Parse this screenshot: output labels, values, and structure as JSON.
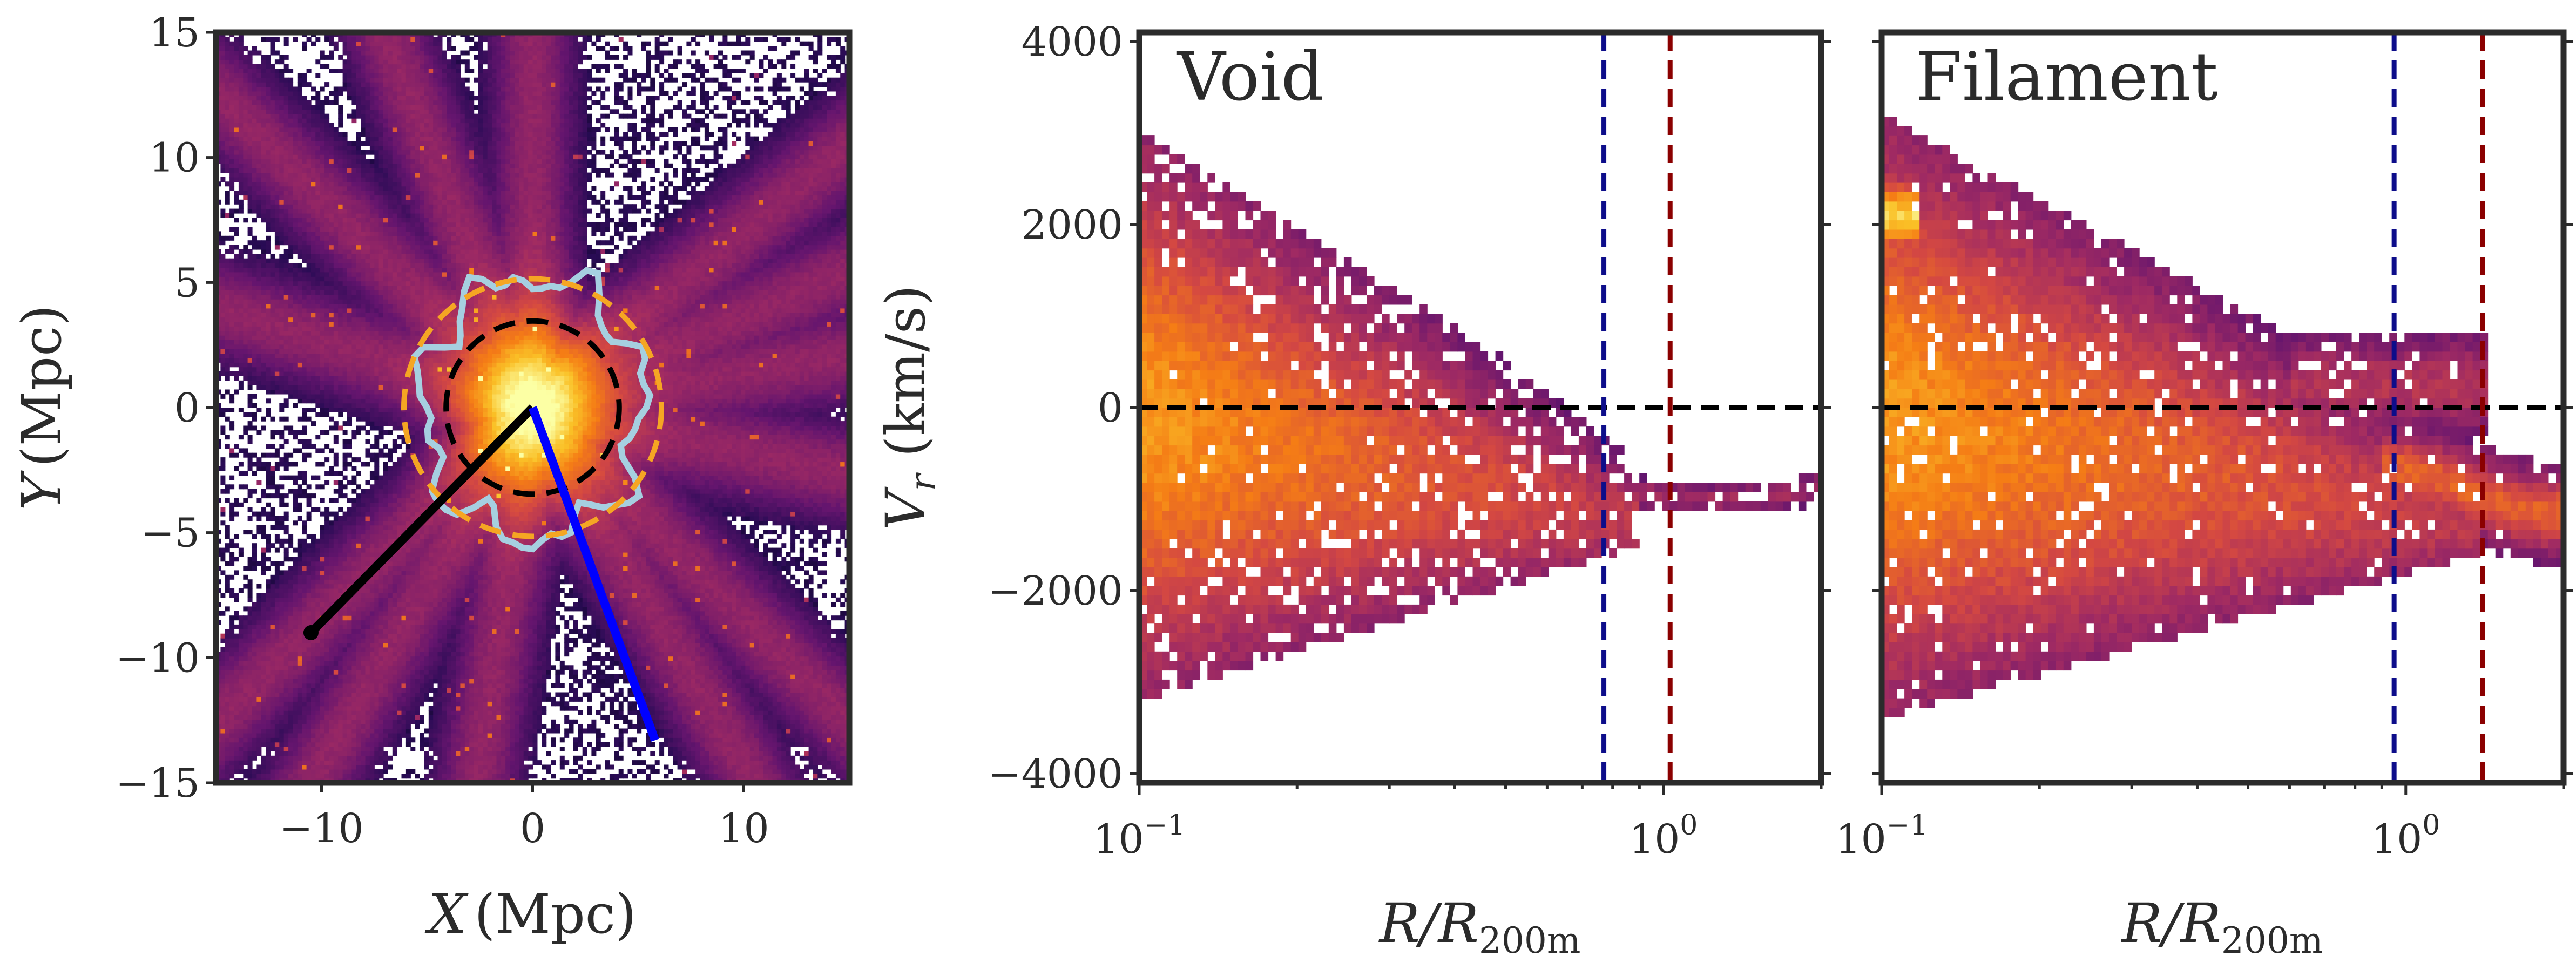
{
  "colors": {
    "void_ring": "#0d0d8a",
    "void_ring_outer": "#8b0000",
    "contour": "#a6cfe0",
    "dash_orange": "#f5a623",
    "black_line": "#000000",
    "blue_line": "#0000ff"
  },
  "chart_data": [
    {
      "type": "heatmap",
      "panel": "map",
      "xlabel_sym": "X",
      "xlabel_unit": "(Mpc)",
      "ylabel_sym": "Y",
      "ylabel_unit": "(Mpc)",
      "xlim": [
        -15,
        15
      ],
      "ylim": [
        -15,
        15
      ],
      "xticks": [
        -10,
        0,
        10
      ],
      "xtick_labels": [
        "−10",
        "0",
        "10"
      ],
      "yticks": [
        15,
        10,
        5,
        0,
        -5,
        -10,
        -15
      ],
      "ytick_labels": [
        "15",
        "10",
        "5",
        "0",
        "−5",
        "−10",
        "−15"
      ],
      "circles": [
        {
          "name": "inner-radius-circle",
          "center": [
            0,
            0
          ],
          "radius": 4.1,
          "style": "dashed",
          "color": "black"
        },
        {
          "name": "outer-radius-circle",
          "center": [
            0,
            0
          ],
          "radius": 6.1,
          "style": "dashed",
          "color": "orange"
        }
      ],
      "lines": [
        {
          "name": "void-direction-line",
          "x": [
            0,
            -10.5
          ],
          "y": [
            0,
            -9.0
          ],
          "color": "black"
        },
        {
          "name": "filament-direction-line",
          "x": [
            0,
            5.8
          ],
          "y": [
            0,
            -13.3
          ],
          "color": "blue"
        }
      ],
      "filaments_angles_deg": [
        90,
        35,
        20,
        8,
        -10,
        -40,
        -55,
        -100,
        -125,
        -140,
        165,
        140,
        115
      ]
    },
    {
      "type": "heatmap",
      "panel": "void",
      "label": "Void",
      "xscale": "log",
      "xlim": [
        0.1,
        2.0
      ],
      "ylim": [
        -4100,
        4100
      ],
      "xticks": [
        0.1,
        1.0
      ],
      "xtick_base": [
        "10",
        "10"
      ],
      "xtick_exp": [
        "−1",
        "0"
      ],
      "yticks": [
        4000,
        2000,
        0,
        -2000,
        -4000
      ],
      "ytick_labels": [
        "4000",
        "2000",
        "0",
        "−2000",
        "−4000"
      ],
      "ylabel_sym": "V",
      "ylabel_sub": "r",
      "ylabel_unit": " (km/s)",
      "xlabel_sym": "R/R",
      "xlabel_sub": "200m",
      "vlines": [
        {
          "name": "splashback-radius-line",
          "x": 0.77,
          "color": "#0d0d8a"
        },
        {
          "name": "outer-radius-line",
          "x": 1.03,
          "color": "#8b0000"
        }
      ],
      "hline": 0,
      "r_cutoff": 0.85,
      "spread_max": 3000,
      "infall_extent": 2.0
    },
    {
      "type": "heatmap",
      "panel": "filament",
      "label": "Filament",
      "xscale": "log",
      "xlim": [
        0.1,
        2.0
      ],
      "ylim": [
        -4100,
        4100
      ],
      "xticks": [
        0.1,
        1.0
      ],
      "xtick_base": [
        "10",
        "10"
      ],
      "xtick_exp": [
        "−1",
        "0"
      ],
      "yticks": [
        4000,
        2000,
        0,
        -2000,
        -4000
      ],
      "xlabel_sym": "R/R",
      "xlabel_sub": "200m",
      "vlines": [
        {
          "name": "splashback-radius-line",
          "x": 0.95,
          "color": "#0d0d8a"
        },
        {
          "name": "outer-radius-line",
          "x": 1.4,
          "color": "#8b0000"
        }
      ],
      "hline": 0,
      "r_cutoff": 1.3,
      "spread_max": 3200,
      "infall_extent": 2.0
    }
  ]
}
